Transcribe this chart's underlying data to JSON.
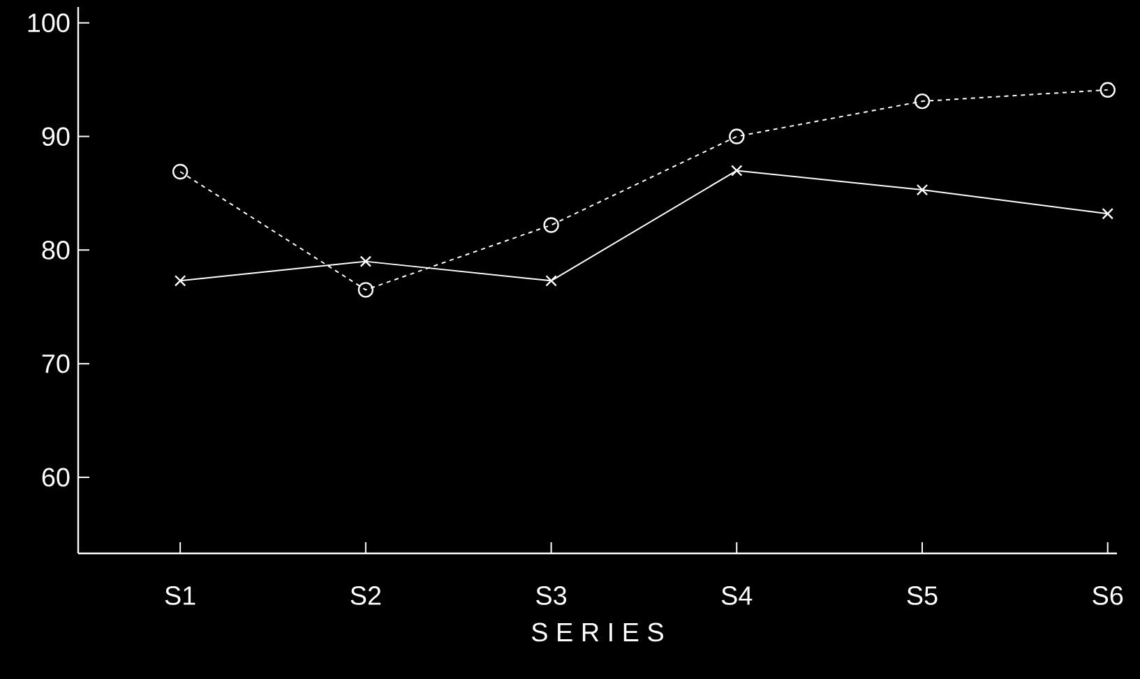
{
  "chart_data": {
    "type": "line",
    "xlabel": "S E R I E S",
    "categories": [
      "S1",
      "S2",
      "S3",
      "S4",
      "S5",
      "S6"
    ],
    "series": [
      {
        "color": "#ffffff",
        "line_style": "solid",
        "marker": "cross",
        "values": [
          77.3,
          79.0,
          77.3,
          87.0,
          85.3,
          83.2
        ]
      },
      {
        "color": "#ffffff",
        "line_style": "dashed",
        "marker": "circle",
        "values": [
          86.9,
          76.5,
          82.2,
          90.0,
          93.1,
          94.1
        ]
      }
    ],
    "ylim": [
      53.3,
      101.4
    ],
    "yticks": [
      60,
      70,
      80,
      90,
      100
    ],
    "grid": false
  }
}
